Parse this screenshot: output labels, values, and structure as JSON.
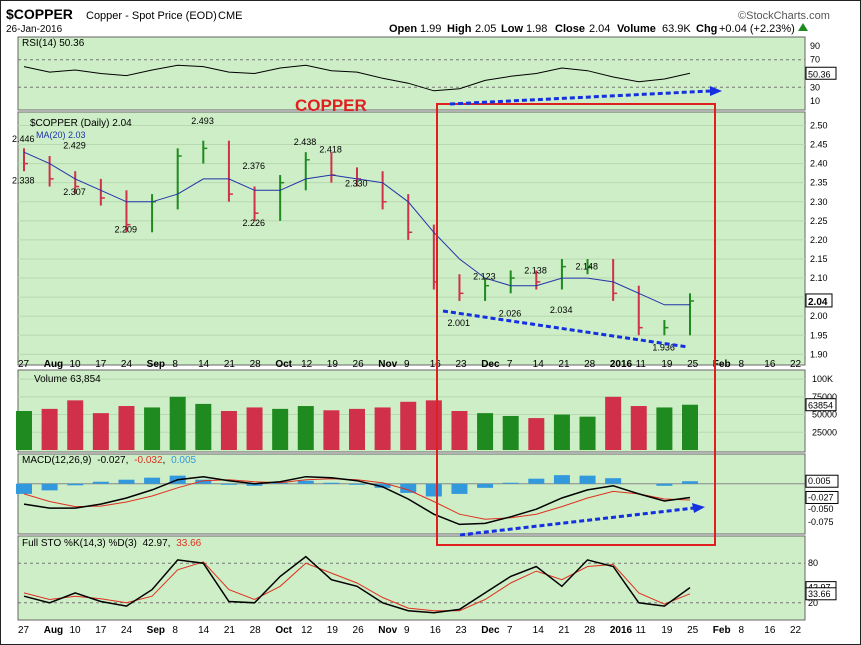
{
  "header": {
    "symbol": "$COPPER",
    "name": "Copper - Spot Price (EOD)",
    "exchange": "CME",
    "date": "26-Jan-2016",
    "brand": "©StockCharts.com",
    "open_label": "Open",
    "open": "1.99",
    "high_label": "High",
    "high": "2.05",
    "low_label": "Low",
    "low": "1.98",
    "close_label": "Close",
    "close": "2.04",
    "volume_label": "Volume",
    "volume": "63.9K",
    "chg_label": "Chg",
    "chg": "+0.04 (+2.23%)",
    "chg_icon": "up-triangle-icon"
  },
  "colors": {
    "panel_bg": "#cdeec6",
    "up_bar": "#1f8a1f",
    "down_bar": "#d0304a",
    "ma_line": "#2233aa",
    "annotation_red": "#e02020",
    "annotation_blue": "#1530e0",
    "macd_hist": "#3399dd",
    "signal_red": "#e03020"
  },
  "annotation": {
    "label": "COPPER"
  },
  "chart_data": [
    {
      "type": "line",
      "panel": "RSI",
      "title": "RSI(14) 50.36",
      "y_ticks": [
        "90",
        "70",
        "50",
        "30",
        "10"
      ],
      "ylim": [
        0,
        100
      ],
      "last_value": "50.36",
      "x": [
        "Jul 27",
        "Aug 3",
        "Aug 10",
        "Aug 17",
        "Aug 24",
        "Aug 31",
        "Sep 8",
        "Sep 14",
        "Sep 21",
        "Sep 28",
        "Oct 5",
        "Oct 12",
        "Oct 19",
        "Oct 26",
        "Nov 2",
        "Nov 9",
        "Nov 16",
        "Nov 23",
        "Nov 30",
        "Dec 7",
        "Dec 14",
        "Dec 21",
        "Dec 28",
        "Jan 4",
        "Jan 11",
        "Jan 19",
        "Jan 26"
      ],
      "values": [
        60,
        52,
        55,
        50,
        47,
        55,
        62,
        60,
        52,
        50,
        58,
        62,
        54,
        52,
        43,
        36,
        25,
        28,
        40,
        46,
        50,
        58,
        54,
        45,
        38,
        42,
        50.36
      ],
      "levels": [
        70,
        30
      ]
    },
    {
      "type": "bar",
      "panel": "Price",
      "title": "$COPPER (Daily) 2.04",
      "ma_label": "MA(20) 2.03",
      "y_ticks": [
        "2.50",
        "2.45",
        "2.40",
        "2.35",
        "2.30",
        "2.25",
        "2.20",
        "2.15",
        "2.10",
        "2.05",
        "2.00",
        "1.95",
        "1.90"
      ],
      "ylim": [
        1.88,
        2.53
      ],
      "last_price": "2.04",
      "x": [
        "Jul 27",
        "Aug 3",
        "Aug 10",
        "Aug 17",
        "Aug 24",
        "Aug 31",
        "Sep 8",
        "Sep 14",
        "Sep 21",
        "Sep 28",
        "Oct 5",
        "Oct 12",
        "Oct 19",
        "Oct 26",
        "Nov 2",
        "Nov 9",
        "Nov 16",
        "Nov 23",
        "Nov 30",
        "Dec 7",
        "Dec 14",
        "Dec 21",
        "Dec 28",
        "Jan 4",
        "Jan 11",
        "Jan 19",
        "Jan 26"
      ],
      "close": [
        2.4,
        2.36,
        2.34,
        2.31,
        2.24,
        2.3,
        2.42,
        2.44,
        2.32,
        2.27,
        2.35,
        2.41,
        2.37,
        2.36,
        2.3,
        2.22,
        2.09,
        2.06,
        2.08,
        2.1,
        2.09,
        2.13,
        2.13,
        2.06,
        1.97,
        1.97,
        2.04
      ],
      "ma20": [
        2.43,
        2.4,
        2.36,
        2.33,
        2.3,
        2.3,
        2.32,
        2.36,
        2.36,
        2.33,
        2.33,
        2.36,
        2.37,
        2.36,
        2.35,
        2.3,
        2.22,
        2.15,
        2.1,
        2.08,
        2.08,
        2.1,
        2.1,
        2.09,
        2.06,
        2.03,
        2.03
      ],
      "annotations": [
        {
          "label": "2.446",
          "x": "Jul 27",
          "y": 2.446
        },
        {
          "label": "2.338",
          "x": "Jul 27",
          "y": 2.338
        },
        {
          "label": "2.429",
          "x": "Aug 10",
          "y": 2.429
        },
        {
          "label": "2.307",
          "x": "Aug 10",
          "y": 2.307
        },
        {
          "label": "2.209",
          "x": "Aug 24",
          "y": 2.209
        },
        {
          "label": "2.493",
          "x": "Sep 14",
          "y": 2.493
        },
        {
          "label": "2.376",
          "x": "Sep 28",
          "y": 2.376
        },
        {
          "label": "2.226",
          "x": "Sep 28",
          "y": 2.226
        },
        {
          "label": "2.438",
          "x": "Oct 12",
          "y": 2.438
        },
        {
          "label": "2.418",
          "x": "Oct 19",
          "y": 2.418
        },
        {
          "label": "2.330",
          "x": "Oct 26",
          "y": 2.33
        },
        {
          "label": "2.123",
          "x": "Nov 30",
          "y": 2.123
        },
        {
          "label": "2.001",
          "x": "Nov 23",
          "y": 2.001
        },
        {
          "label": "2.026",
          "x": "Dec 7",
          "y": 2.026
        },
        {
          "label": "2.138",
          "x": "Dec 14",
          "y": 2.138
        },
        {
          "label": "2.034",
          "x": "Dec 21",
          "y": 2.034
        },
        {
          "label": "2.148",
          "x": "Dec 28",
          "y": 2.148
        },
        {
          "label": "1.936",
          "x": "Jan 19",
          "y": 1.936
        }
      ]
    },
    {
      "type": "bar",
      "panel": "Volume",
      "title": "Volume 63,854",
      "y_ticks": [
        "100K",
        "75000",
        "50000",
        "25000"
      ],
      "ylim": [
        0,
        110000
      ],
      "last_value": "63854",
      "x": [
        "Jul 27",
        "Aug 3",
        "Aug 10",
        "Aug 17",
        "Aug 24",
        "Aug 31",
        "Sep 8",
        "Sep 14",
        "Sep 21",
        "Sep 28",
        "Oct 5",
        "Oct 12",
        "Oct 19",
        "Oct 26",
        "Nov 2",
        "Nov 9",
        "Nov 16",
        "Nov 23",
        "Nov 30",
        "Dec 7",
        "Dec 14",
        "Dec 21",
        "Dec 28",
        "Jan 4",
        "Jan 11",
        "Jan 19",
        "Jan 26"
      ],
      "values": [
        55000,
        58000,
        70000,
        52000,
        62000,
        60000,
        75000,
        65000,
        55000,
        60000,
        58000,
        62000,
        56000,
        58000,
        60000,
        68000,
        70000,
        55000,
        52000,
        48000,
        45000,
        50000,
        47000,
        75000,
        62000,
        60000,
        63854
      ]
    },
    {
      "type": "line",
      "panel": "MACD",
      "title": "MACD(12,26,9) -0.027, -0.032, 0.005",
      "title_parts": [
        "MACD(12,26,9)",
        "-0.027",
        "-0.032",
        "0.005"
      ],
      "y_ticks": [
        "0.005",
        "-0.027",
        "-0.050",
        "-0.075"
      ],
      "ylim": [
        -0.095,
        0.035
      ],
      "x": [
        "Jul 27",
        "Aug 3",
        "Aug 10",
        "Aug 17",
        "Aug 24",
        "Aug 31",
        "Sep 8",
        "Sep 14",
        "Sep 21",
        "Sep 28",
        "Oct 5",
        "Oct 12",
        "Oct 19",
        "Oct 26",
        "Nov 2",
        "Nov 9",
        "Nov 16",
        "Nov 23",
        "Nov 30",
        "Dec 7",
        "Dec 14",
        "Dec 21",
        "Dec 28",
        "Jan 4",
        "Jan 11",
        "Jan 19",
        "Jan 26"
      ],
      "macd": [
        -0.04,
        -0.048,
        -0.048,
        -0.04,
        -0.028,
        -0.012,
        0.008,
        0.014,
        0.006,
        0.0,
        0.004,
        0.014,
        0.012,
        0.006,
        -0.006,
        -0.03,
        -0.06,
        -0.08,
        -0.078,
        -0.065,
        -0.05,
        -0.028,
        -0.012,
        -0.004,
        -0.02,
        -0.034,
        -0.027
      ],
      "signal": [
        -0.02,
        -0.035,
        -0.045,
        -0.044,
        -0.036,
        -0.024,
        -0.008,
        0.006,
        0.008,
        0.004,
        0.002,
        0.008,
        0.01,
        0.008,
        0.002,
        -0.012,
        -0.035,
        -0.06,
        -0.07,
        -0.067,
        -0.06,
        -0.045,
        -0.028,
        -0.015,
        -0.02,
        -0.03,
        -0.032
      ],
      "histogram": [
        -0.02,
        -0.013,
        -0.003,
        0.004,
        0.008,
        0.012,
        0.016,
        0.008,
        -0.002,
        -0.004,
        0.002,
        0.006,
        0.002,
        -0.002,
        -0.008,
        -0.018,
        -0.025,
        -0.02,
        -0.008,
        0.002,
        0.01,
        0.017,
        0.016,
        0.011,
        0.0,
        -0.004,
        0.005
      ]
    },
    {
      "type": "line",
      "panel": "Full STO",
      "title": "Full STO %K(14,3) %D(3) 42.97, 33.66",
      "title_parts": [
        "Full STO %K(14,3) %D(3)",
        "42.97",
        "33.66"
      ],
      "y_ticks": [
        "80",
        "42.97",
        "33.66",
        "20"
      ],
      "ylim": [
        0,
        100
      ],
      "x": [
        "Jul 27",
        "Aug 3",
        "Aug 10",
        "Aug 17",
        "Aug 24",
        "Aug 31",
        "Sep 8",
        "Sep 14",
        "Sep 21",
        "Sep 28",
        "Oct 5",
        "Oct 12",
        "Oct 19",
        "Oct 26",
        "Nov 2",
        "Nov 9",
        "Nov 16",
        "Nov 23",
        "Nov 30",
        "Dec 7",
        "Dec 14",
        "Dec 21",
        "Dec 28",
        "Jan 4",
        "Jan 11",
        "Jan 19",
        "Jan 26"
      ],
      "k": [
        30,
        20,
        35,
        22,
        15,
        40,
        85,
        80,
        22,
        20,
        60,
        90,
        55,
        45,
        20,
        8,
        5,
        10,
        35,
        60,
        75,
        45,
        85,
        75,
        20,
        15,
        42.97
      ],
      "d": [
        35,
        25,
        30,
        26,
        20,
        30,
        70,
        82,
        40,
        25,
        45,
        80,
        65,
        50,
        28,
        12,
        8,
        8,
        25,
        50,
        68,
        55,
        75,
        78,
        35,
        18,
        33.66
      ],
      "levels": [
        80,
        20
      ]
    }
  ],
  "x_axis": {
    "labels": [
      "27",
      "Aug",
      "10",
      "17",
      "24",
      "Sep",
      "8",
      "14",
      "21",
      "28",
      "Oct",
      "12",
      "19",
      "26",
      "Nov",
      "9",
      "16",
      "23",
      "Dec",
      "7",
      "14",
      "21",
      "28",
      "2016",
      "11",
      "19",
      "25",
      "Feb",
      "8",
      "16",
      "22"
    ],
    "bold": [
      "Aug",
      "Sep",
      "Oct",
      "Nov",
      "Dec",
      "2016",
      "Feb"
    ]
  }
}
